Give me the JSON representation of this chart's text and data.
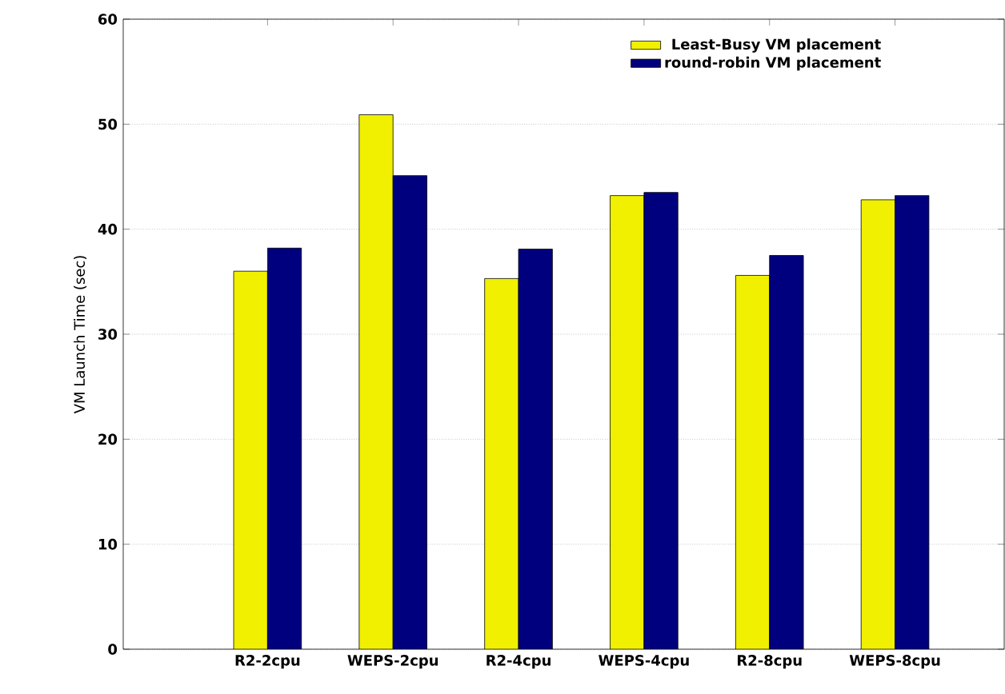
{
  "chart_data": {
    "type": "bar",
    "ylabel": "VM Launch Time (sec)",
    "categories": [
      "R2-2cpu",
      "WEPS-2cpu",
      "R2-4cpu",
      "WEPS-4cpu",
      "R2-8cpu",
      "WEPS-8cpu"
    ],
    "series": [
      {
        "name": "Least-Busy VM placement",
        "color": "#f0f000",
        "values": [
          36.0,
          50.9,
          35.3,
          43.2,
          35.6,
          42.8
        ]
      },
      {
        "name": "round-robin VM placement",
        "color": "#00007f",
        "values": [
          38.2,
          45.1,
          38.1,
          43.5,
          37.5,
          43.2
        ]
      }
    ],
    "ylim": [
      0,
      60
    ],
    "yticks": [
      0,
      10,
      20,
      30,
      40,
      50,
      60
    ],
    "grid": "y",
    "legend": "top"
  }
}
